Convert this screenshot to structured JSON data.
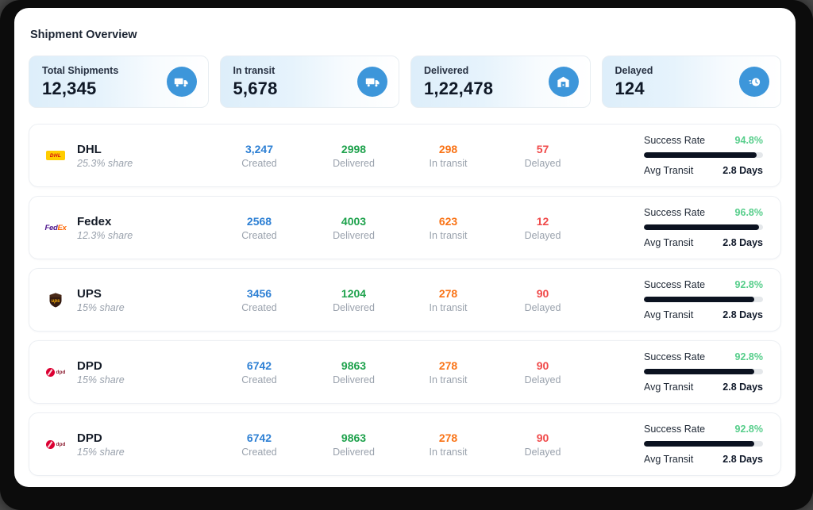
{
  "page": {
    "title": "Shipment Overview"
  },
  "stat_cards": [
    {
      "label": "Total Shipments",
      "value": "12,345",
      "icon": "truck-icon"
    },
    {
      "label": "In transit",
      "value": "5,678",
      "icon": "truck-icon"
    },
    {
      "label": "Delivered",
      "value": "1,22,478",
      "icon": "warehouse-icon"
    },
    {
      "label": "Delayed",
      "value": "124",
      "icon": "timer-icon"
    }
  ],
  "carrier_table": {
    "metric_labels": {
      "created": "Created",
      "delivered": "Delivered",
      "in_transit": "In transit",
      "delayed": "Delayed",
      "success_rate": "Success Rate",
      "avg_transit": "Avg Transit"
    },
    "rows": [
      {
        "name": "DHL",
        "share": "25.3% share",
        "logo": "dhl-logo",
        "created": "3,247",
        "delivered": "2998",
        "in_transit": "298",
        "delayed": "57",
        "success_rate": "94.8%",
        "success_rate_pct": 94.8,
        "avg_transit": "2.8 Days"
      },
      {
        "name": "Fedex",
        "share": "12.3% share",
        "logo": "fedex-logo",
        "created": "2568",
        "delivered": "4003",
        "in_transit": "623",
        "delayed": "12",
        "success_rate": "96.8%",
        "success_rate_pct": 96.8,
        "avg_transit": "2.8 Days"
      },
      {
        "name": "UPS",
        "share": "15% share",
        "logo": "ups-logo",
        "created": "3456",
        "delivered": "1204",
        "in_transit": "278",
        "delayed": "90",
        "success_rate": "92.8%",
        "success_rate_pct": 92.8,
        "avg_transit": "2.8 Days"
      },
      {
        "name": "DPD",
        "share": "15% share",
        "logo": "dpd-logo",
        "created": "6742",
        "delivered": "9863",
        "in_transit": "278",
        "delayed": "90",
        "success_rate": "92.8%",
        "success_rate_pct": 92.8,
        "avg_transit": "2.8 Days"
      },
      {
        "name": "DPD",
        "share": "15% share",
        "logo": "dpd-logo",
        "created": "6742",
        "delivered": "9863",
        "in_transit": "278",
        "delayed": "90",
        "success_rate": "92.8%",
        "success_rate_pct": 92.8,
        "avg_transit": "2.8 Days"
      }
    ]
  },
  "colors": {
    "accent_blue": "#3d96da",
    "created": "#2e80d4",
    "delivered": "#1fa24d",
    "in_transit": "#f97316",
    "delayed": "#f04a4a",
    "success_green": "#57ce8b",
    "progress_fill": "#0b1220",
    "card_tint": "#ddeefa"
  }
}
